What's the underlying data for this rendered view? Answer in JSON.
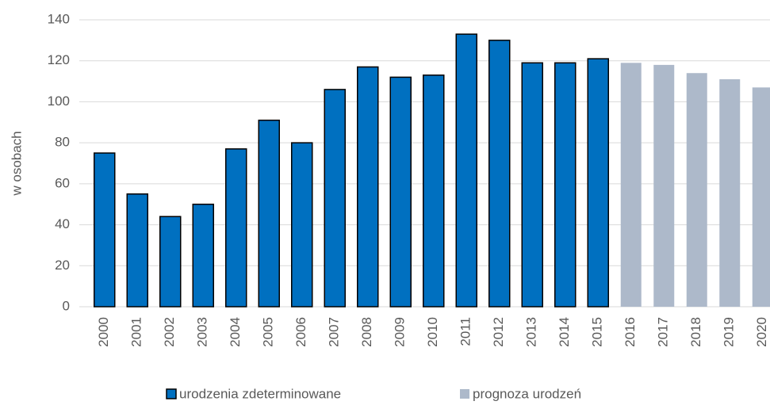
{
  "chart_data": {
    "type": "bar",
    "y_label": "w osobach",
    "categories": [
      "2000",
      "2001",
      "2002",
      "2003",
      "2004",
      "2005",
      "2006",
      "2007",
      "2008",
      "2009",
      "2010",
      "2011",
      "2012",
      "2013",
      "2014",
      "2015",
      "2016",
      "2017",
      "2018",
      "2019",
      "2020"
    ],
    "series": [
      {
        "name": "urodzenia zdeterminowane",
        "color": "#0070c0",
        "edge": "#000000",
        "values": [
          75,
          55,
          44,
          50,
          77,
          91,
          80,
          106,
          117,
          112,
          113,
          133,
          130,
          119,
          119,
          121,
          null,
          null,
          null,
          null,
          null
        ]
      },
      {
        "name": "prognoza urodzeń",
        "color": "#adb9ca",
        "values": [
          null,
          null,
          null,
          null,
          null,
          null,
          null,
          null,
          null,
          null,
          null,
          null,
          null,
          null,
          null,
          null,
          119,
          118,
          114,
          111,
          107
        ]
      }
    ],
    "ylim": [
      0,
      140
    ],
    "yticks": [
      0,
      20,
      40,
      60,
      80,
      100,
      120,
      140
    ],
    "grid": true,
    "legend": "bottom"
  }
}
